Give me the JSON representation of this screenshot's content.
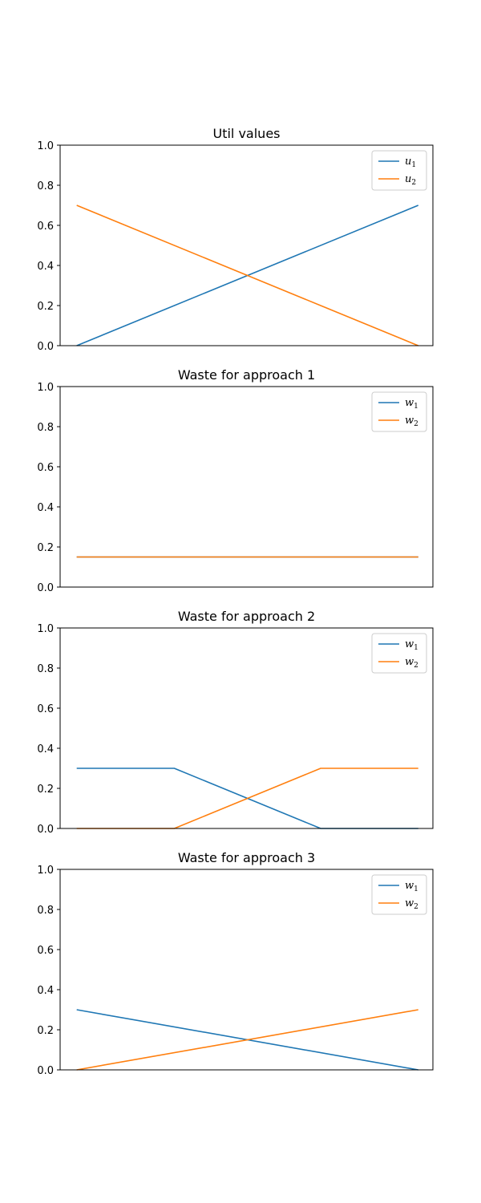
{
  "figure": {
    "colors": {
      "series1": "#1f77b4",
      "series2": "#ff7f0e"
    }
  },
  "chart_data": [
    {
      "type": "line",
      "title": "Util values",
      "xlabel": "",
      "ylabel": "",
      "x": [
        0,
        1,
        2,
        3
      ],
      "xlim": [
        -0.17,
        3.65
      ],
      "ylim": [
        0,
        1
      ],
      "yticks": [
        "0.0",
        "0.2",
        "0.4",
        "0.6",
        "0.8",
        "1.0"
      ],
      "show_xticks": false,
      "grid": false,
      "legend_position": "top-right",
      "series": [
        {
          "name": "u",
          "sub": "1",
          "x": [
            0,
            3.5
          ],
          "values": [
            0.0,
            0.7
          ]
        },
        {
          "name": "u",
          "sub": "2",
          "x": [
            0,
            3.5
          ],
          "values": [
            0.7,
            0.0
          ]
        }
      ]
    },
    {
      "type": "line",
      "title": "Waste for approach 1",
      "xlabel": "",
      "ylabel": "",
      "xlim": [
        -0.17,
        3.65
      ],
      "ylim": [
        0,
        1
      ],
      "yticks": [
        "0.0",
        "0.2",
        "0.4",
        "0.6",
        "0.8",
        "1.0"
      ],
      "show_xticks": false,
      "grid": false,
      "legend_position": "top-right",
      "series": [
        {
          "name": "w",
          "sub": "1",
          "x": [
            0,
            3.5
          ],
          "values": [
            0.15,
            0.15
          ]
        },
        {
          "name": "w",
          "sub": "2",
          "x": [
            0,
            3.5
          ],
          "values": [
            0.15,
            0.15
          ]
        }
      ]
    },
    {
      "type": "line",
      "title": "Waste for approach 2",
      "xlabel": "",
      "ylabel": "",
      "xlim": [
        -0.17,
        3.65
      ],
      "ylim": [
        0,
        1
      ],
      "yticks": [
        "0.0",
        "0.2",
        "0.4",
        "0.6",
        "0.8",
        "1.0"
      ],
      "show_xticks": false,
      "grid": false,
      "legend_position": "top-right",
      "series": [
        {
          "name": "w",
          "sub": "1",
          "x": [
            0,
            1,
            2.5,
            3.5
          ],
          "values": [
            0.3,
            0.3,
            0.0,
            0.0
          ]
        },
        {
          "name": "w",
          "sub": "2",
          "x": [
            0,
            1,
            2.5,
            3.5
          ],
          "values": [
            0.0,
            0.0,
            0.3,
            0.3
          ]
        }
      ]
    },
    {
      "type": "line",
      "title": "Waste for approach 3",
      "xlabel": "",
      "ylabel": "",
      "xlim": [
        -0.17,
        3.65
      ],
      "ylim": [
        0,
        1
      ],
      "yticks": [
        "0.0",
        "0.2",
        "0.4",
        "0.6",
        "0.8",
        "1.0"
      ],
      "show_xticks": false,
      "grid": false,
      "legend_position": "top-right",
      "series": [
        {
          "name": "w",
          "sub": "1",
          "x": [
            0,
            3.5
          ],
          "values": [
            0.3,
            0.0
          ]
        },
        {
          "name": "w",
          "sub": "2",
          "x": [
            0,
            3.5
          ],
          "values": [
            0.0,
            0.3
          ]
        }
      ]
    }
  ]
}
